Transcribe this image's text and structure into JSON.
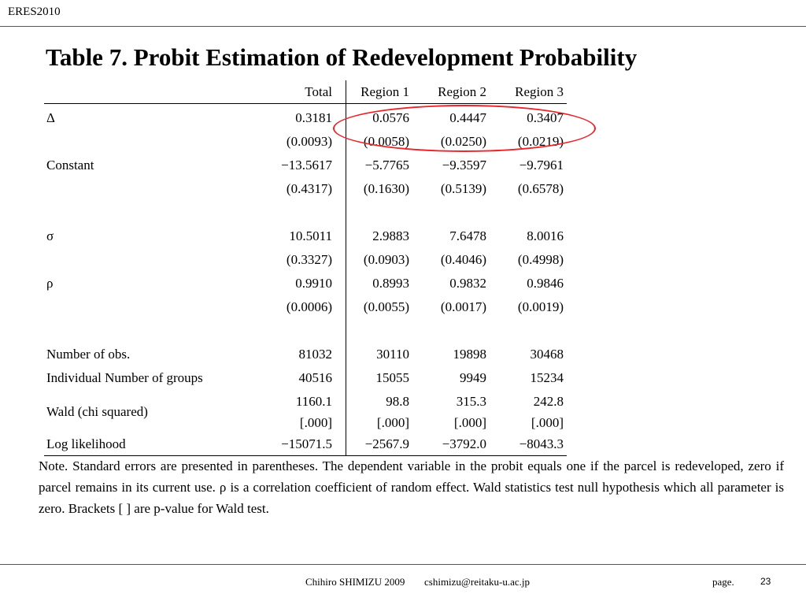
{
  "header": {
    "label": "ERES2010"
  },
  "title": "Table 7. Probit Estimation of Redevelopment Probability",
  "table": {
    "columns": [
      "Total",
      "Region 1",
      "Region 2",
      "Region 3"
    ],
    "rows": [
      {
        "label": "Δ",
        "values": [
          "0.3181",
          "0.0576",
          "0.4447",
          "0.3407"
        ]
      },
      {
        "label": "",
        "values": [
          "(0.0093)",
          "(0.0058)",
          "(0.0250)",
          "(0.0219)"
        ]
      },
      {
        "label": "Constant",
        "values": [
          "−13.5617",
          "−5.7765",
          "−9.3597",
          "−9.7961"
        ]
      },
      {
        "label": "",
        "values": [
          "(0.4317)",
          "(0.1630)",
          "(0.5139)",
          "(0.6578)"
        ]
      },
      {
        "label": "σ",
        "values": [
          "10.5011",
          "2.9883",
          "7.6478",
          "8.0016"
        ]
      },
      {
        "label": "",
        "values": [
          "(0.3327)",
          "(0.0903)",
          "(0.4046)",
          "(0.4998)"
        ]
      },
      {
        "label": "ρ",
        "values": [
          "0.9910",
          "0.8993",
          "0.9832",
          "0.9846"
        ]
      },
      {
        "label": "",
        "values": [
          "(0.0006)",
          "(0.0055)",
          "(0.0017)",
          "(0.0019)"
        ]
      },
      {
        "label": "Number of obs.",
        "values": [
          "81032",
          "30110",
          "19898",
          "30468"
        ]
      },
      {
        "label": "Individual Number of groups",
        "values": [
          "40516",
          "15055",
          "9949",
          "15234"
        ]
      },
      {
        "label": "Wald (chi squared)",
        "values": [
          "1160.1",
          "98.8",
          "315.3",
          "242.8"
        ]
      },
      {
        "label": "",
        "values": [
          "[.000]",
          "[.000]",
          "[.000]",
          "[.000]"
        ]
      },
      {
        "label": "Log likelihood",
        "values": [
          "−15071.5",
          "−2567.9",
          "−3792.0",
          "−8043.3"
        ]
      }
    ]
  },
  "note": "Note. Standard errors are presented in parentheses. The dependent variable in the probit equals one if the parcel is redeveloped, zero if parcel remains in its current use. ρ is a correlation coefficient of random effect. Wald statistics test null hypothesis which all parameter is zero. Brackets [ ] are p-value for Wald test.",
  "footer": {
    "author": "Chihiro SHIMIZU 2009",
    "email": "cshimizu@reitaku-u.ac.jp",
    "page_label": "page.",
    "page_number": "23"
  },
  "colors": {
    "highlight": "#e8262b"
  }
}
